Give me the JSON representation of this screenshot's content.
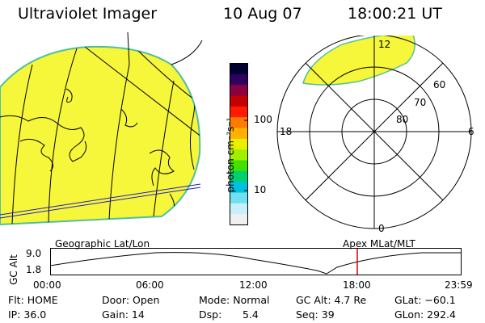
{
  "header": {
    "title": "Ultraviolet Imager",
    "date": "10 Aug 07",
    "time": "18:00:21 UT"
  },
  "colorbar": {
    "unit_label": "photon cm⁻²s⁻¹",
    "ticks": [
      "100",
      "10"
    ],
    "colors": [
      "#000030",
      "#300060",
      "#8a0040",
      "#c40000",
      "#ff1a00",
      "#ff7a00",
      "#ffb000",
      "#e8f000",
      "#a0f000",
      "#40e000",
      "#00d070",
      "#00c0e0",
      "#70e0f0",
      "#c8f0f8",
      "#f0f0f0"
    ]
  },
  "earth_image": {
    "label": "Geographic Lat/Lon",
    "fill_color": "#f6f63a",
    "edge_color": "#4fc0a0"
  },
  "polar_plot": {
    "label": "Apex  MLat/MLT",
    "lat_labels": [
      "60",
      "70",
      "80"
    ],
    "mlt_labels": {
      "top": "12",
      "left": "18",
      "right": "6",
      "bottom": "0"
    },
    "fill_color": "#f6f63a"
  },
  "altitude_plot": {
    "ylabel": "GC Alt",
    "yticks": [
      "9.0",
      "1.8"
    ],
    "xticks": [
      "00:00",
      "06:00",
      "12:00",
      "18:00",
      "23:59"
    ],
    "marker_color": "#d00000"
  },
  "footer": {
    "flt": "Flt: HOME",
    "ip": "IP: 36.0",
    "door": "Door: Open",
    "gain": "Gain: 14",
    "mode": "Mode: Normal",
    "dsp_label": "Dsp:",
    "dsp_value": "5.4",
    "gcalt": "GC Alt: 4.7 Re",
    "seq": "Seq: 39",
    "glat": "GLat: −60.1",
    "glon": "GLon: 292.4"
  }
}
